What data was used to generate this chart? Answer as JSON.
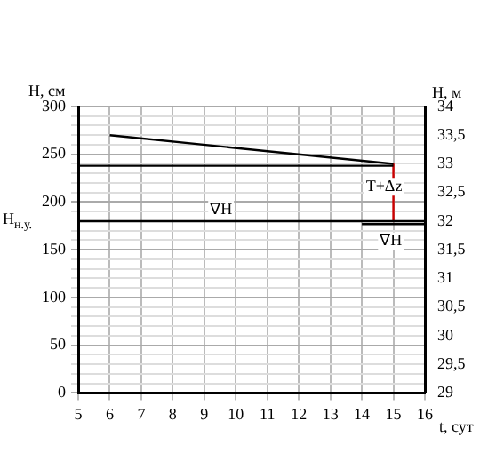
{
  "chart_data": {
    "type": "line",
    "xlabel": "t, сут",
    "ylabel": "H, см",
    "y2label": "H, м",
    "xlim": [
      5,
      16
    ],
    "xticks": [
      5,
      6,
      7,
      8,
      9,
      10,
      11,
      12,
      13,
      14,
      15,
      16
    ],
    "ylim": [
      0,
      300
    ],
    "yticks": [
      0,
      {
        "value": 10,
        "label": null
      },
      {
        "value": 20,
        "label": null
      },
      {
        "value": 30,
        "label": null
      },
      {
        "value": 40,
        "label": null
      },
      50,
      {
        "value": 60,
        "label": null
      },
      {
        "value": 70,
        "label": null
      },
      {
        "value": 80,
        "label": null
      },
      {
        "value": 90,
        "label": null
      },
      100,
      {
        "value": 110,
        "label": null
      },
      {
        "value": 120,
        "label": null
      },
      {
        "value": 130,
        "label": null
      },
      {
        "value": 140,
        "label": null
      },
      150,
      {
        "value": 160,
        "label": null
      },
      {
        "value": 170,
        "label": null
      },
      {
        "value": 190,
        "label": null
      },
      200,
      {
        "value": 210,
        "label": null
      },
      {
        "value": 220,
        "label": null
      },
      {
        "value": 230,
        "label": null
      },
      {
        "value": 240,
        "label": null
      },
      250,
      {
        "value": 260,
        "label": null
      },
      {
        "value": 270,
        "label": null
      },
      {
        "value": 280,
        "label": null
      },
      {
        "value": 290,
        "label": null
      },
      300
    ],
    "y2lim": [
      29,
      34
    ],
    "y2ticks": [
      29,
      {
        "value": 29.5,
        "label": "29,5"
      },
      30,
      {
        "value": 30.5,
        "label": "30,5"
      },
      31,
      {
        "value": 31.5,
        "label": "31,5"
      },
      32,
      {
        "value": 32.5,
        "label": "32,5"
      },
      33,
      {
        "value": 33.5,
        "label": "33,5"
      },
      34
    ],
    "grid": true,
    "legend": false,
    "marker": "none",
    "line_style": "solid",
    "series": [
      {
        "color": "#000000",
        "x": [
          6,
          15
        ],
        "values": [
          270,
          240
        ]
      },
      {
        "color": "#000000",
        "x": [
          5,
          15
        ],
        "values": [
          238,
          238
        ]
      },
      {
        "color": "#cc0000",
        "x": [
          15,
          15
        ],
        "values": [
          240,
          180
        ]
      },
      {
        "color": "#000000",
        "x": [
          14,
          16
        ],
        "values": [
          177,
          177
        ]
      }
    ],
    "ref_lines": [
      {
        "axis": "y",
        "value": 180,
        "label": "H$_{н.у.}$",
        "color": "#000000"
      }
    ],
    "annotations": [
      "∇H",
      "T+Δz",
      "∇H"
    ]
  }
}
